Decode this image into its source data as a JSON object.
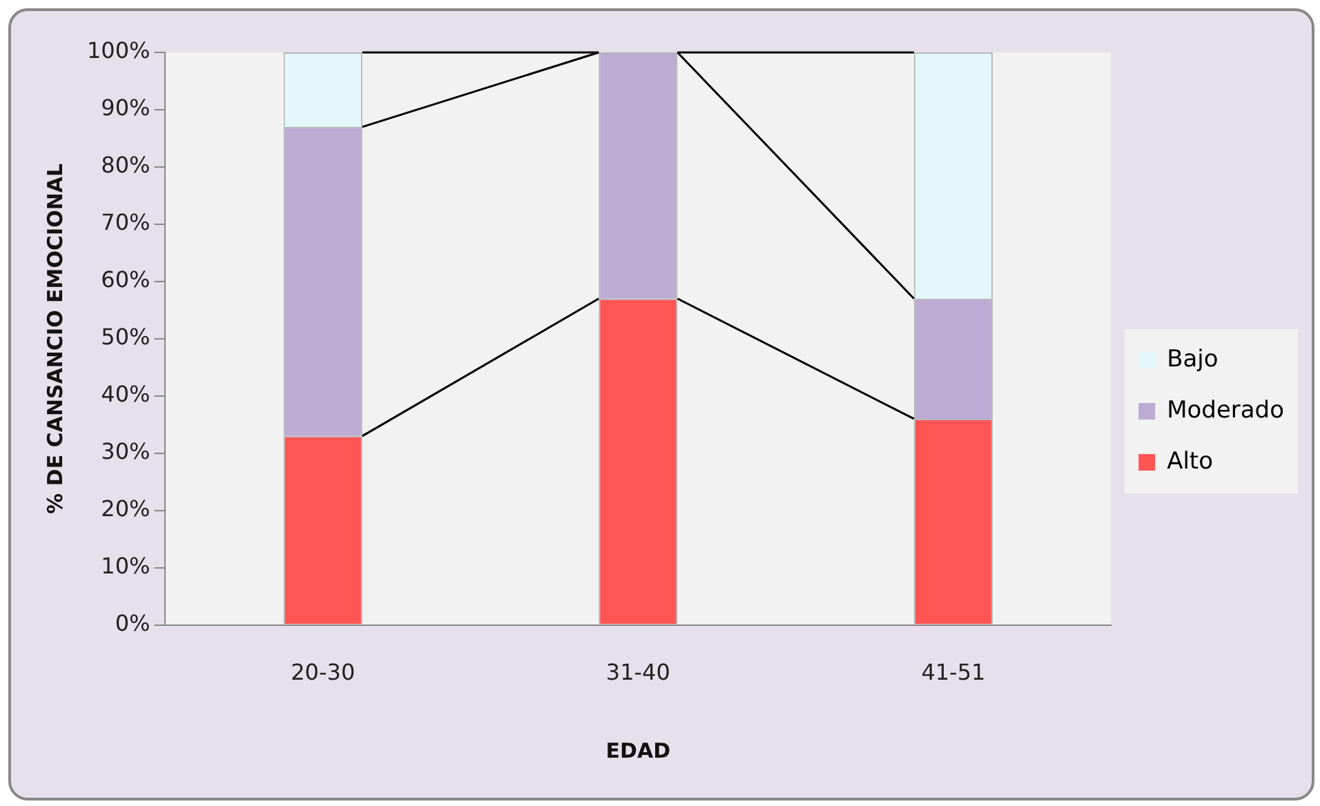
{
  "chart_data": {
    "type": "bar",
    "stacked": true,
    "xlabel": "EDAD",
    "ylabel": "% DE CANSANCIO EMOCIONAL",
    "categories": [
      "20-30",
      "31-40",
      "41-51"
    ],
    "series": [
      {
        "name": "Alto",
        "color": "#ff5555",
        "values": [
          33,
          57,
          36
        ]
      },
      {
        "name": "Moderado",
        "color": "#bcabd3",
        "values": [
          54,
          43,
          21
        ]
      },
      {
        "name": "Bajo",
        "color": "#e4f8fc",
        "values": [
          13,
          0,
          43
        ]
      }
    ],
    "ylim": [
      0,
      100
    ],
    "yticks": [
      {
        "value": 0,
        "label": "0%"
      },
      {
        "value": 10,
        "label": "10%"
      },
      {
        "value": 20,
        "label": "20%"
      },
      {
        "value": 30,
        "label": "30%"
      },
      {
        "value": 40,
        "label": "40%"
      },
      {
        "value": 50,
        "label": "50%"
      },
      {
        "value": 60,
        "label": "60%"
      },
      {
        "value": 70,
        "label": "70%"
      },
      {
        "value": 80,
        "label": "80%"
      },
      {
        "value": 90,
        "label": "90%"
      },
      {
        "value": 100,
        "label": "100%"
      }
    ],
    "grid": false,
    "legend": "right"
  }
}
